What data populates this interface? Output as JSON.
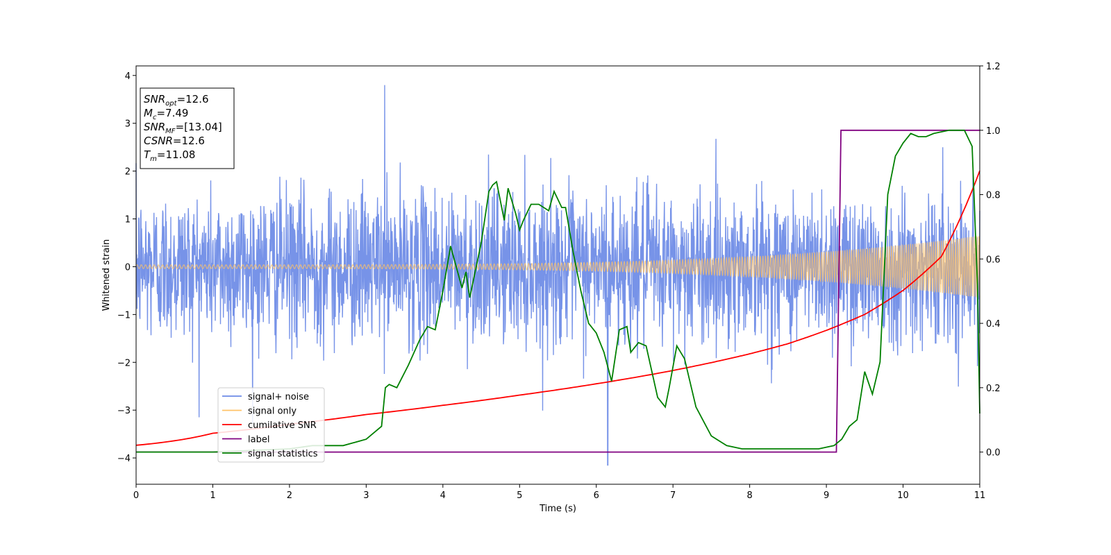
{
  "chart_data": {
    "type": "line",
    "title": "",
    "xlabel": "Time (s)",
    "ylabel": "Whitened strain",
    "xlim": [
      0,
      11
    ],
    "ylim": [
      -4.55,
      4.2
    ],
    "y2lim": [
      -0.1,
      1.2
    ],
    "xticks": [
      0,
      1,
      2,
      3,
      4,
      5,
      6,
      7,
      8,
      9,
      10,
      11
    ],
    "yticks": [
      -4,
      -3,
      -2,
      -1,
      0,
      1,
      2,
      3,
      4
    ],
    "y2ticks": [
      0.0,
      0.2,
      0.4,
      0.6,
      0.8,
      1.0,
      1.2
    ],
    "xtick_labels": [
      "0",
      "1",
      "2",
      "3",
      "4",
      "5",
      "6",
      "7",
      "8",
      "9",
      "10",
      "11"
    ],
    "ytick_labels": [
      "−4",
      "−3",
      "−2",
      "−1",
      "0",
      "1",
      "2",
      "3",
      "4"
    ],
    "y2tick_labels": [
      "0.0",
      "0.2",
      "0.4",
      "0.6",
      "0.8",
      "1.0",
      "1.2"
    ],
    "grid": false,
    "legend_position": "lower-left",
    "info_box": {
      "lines": [
        {
          "base": "SNR",
          "sub": "opt",
          "rest": "=12.6"
        },
        {
          "base": "M",
          "sub": "c",
          "rest": "=7.49"
        },
        {
          "base": "SNR",
          "sub": "MF",
          "rest": "=[13.04]"
        },
        {
          "base": "CSNR",
          "sub": "",
          "rest": "=12.6"
        },
        {
          "base": "T",
          "sub": "m",
          "rest": "=11.08"
        }
      ]
    },
    "series": [
      {
        "name": "signal+ noise",
        "color": "#6b8ae6",
        "axis": "left",
        "noise_std": 0.78,
        "envelope": "band approx. ±1.8, peaks to about ±3.8, spike to −4.15 near t=6.15"
      },
      {
        "name": "signal only",
        "color": "#ffc266",
        "axis": "left",
        "amplitude_start": 0.04,
        "amplitude_end": 0.65
      },
      {
        "name": "cumilative SNR",
        "color": "#ff0000",
        "axis": "right",
        "x": [
          0,
          1,
          2,
          3,
          4,
          5,
          6,
          7,
          7.5,
          8,
          8.5,
          9,
          9.5,
          10,
          10.5,
          11
        ],
        "y": [
          0.0211,
          0.0584,
          0.0867,
          0.1167,
          0.1453,
          0.177,
          0.2121,
          0.2535,
          0.278,
          0.3052,
          0.3368,
          0.3782,
          0.4278,
          0.5024,
          0.608,
          0.874
        ]
      },
      {
        "name": "label",
        "color": "#800080",
        "axis": "right",
        "x": [
          0,
          9.13,
          9.19,
          11
        ],
        "y": [
          0,
          0,
          1,
          1
        ]
      },
      {
        "name": "signal statistics",
        "color": "#008000",
        "axis": "right",
        "x": [
          0,
          1.0,
          2.0,
          2.3,
          2.55,
          2.7,
          2.85,
          3.0,
          3.1,
          3.2,
          3.25,
          3.3,
          3.4,
          3.55,
          3.7,
          3.8,
          3.9,
          4.0,
          4.1,
          4.25,
          4.3,
          4.35,
          4.5,
          4.6,
          4.65,
          4.7,
          4.8,
          4.85,
          4.95,
          5.0,
          5.05,
          5.15,
          5.25,
          5.38,
          5.45,
          5.55,
          5.6,
          5.7,
          5.8,
          5.9,
          6.0,
          6.1,
          6.2,
          6.3,
          6.4,
          6.45,
          6.55,
          6.65,
          6.8,
          6.9,
          6.95,
          7.05,
          7.15,
          7.3,
          7.5,
          7.7,
          7.9,
          8.1,
          8.3,
          8.5,
          8.7,
          8.9,
          9.1,
          9.2,
          9.3,
          9.4,
          9.5,
          9.6,
          9.7,
          9.8,
          9.9,
          10.0,
          10.1,
          10.2,
          10.3,
          10.4,
          10.6,
          10.8,
          10.9,
          10.97,
          11.0
        ],
        "y": [
          0.0,
          0.0,
          0.01,
          0.02,
          0.02,
          0.02,
          0.03,
          0.04,
          0.06,
          0.08,
          0.2,
          0.21,
          0.2,
          0.27,
          0.35,
          0.39,
          0.38,
          0.5,
          0.64,
          0.51,
          0.56,
          0.48,
          0.65,
          0.81,
          0.83,
          0.84,
          0.72,
          0.82,
          0.74,
          0.69,
          0.72,
          0.77,
          0.77,
          0.75,
          0.81,
          0.76,
          0.76,
          0.62,
          0.5,
          0.4,
          0.37,
          0.31,
          0.22,
          0.38,
          0.39,
          0.31,
          0.34,
          0.33,
          0.17,
          0.14,
          0.2,
          0.33,
          0.29,
          0.14,
          0.05,
          0.02,
          0.01,
          0.01,
          0.01,
          0.01,
          0.01,
          0.01,
          0.02,
          0.04,
          0.08,
          0.1,
          0.25,
          0.18,
          0.28,
          0.8,
          0.92,
          0.96,
          0.99,
          0.98,
          0.98,
          0.99,
          1.0,
          1.0,
          0.95,
          0.52,
          0.12
        ]
      }
    ]
  }
}
